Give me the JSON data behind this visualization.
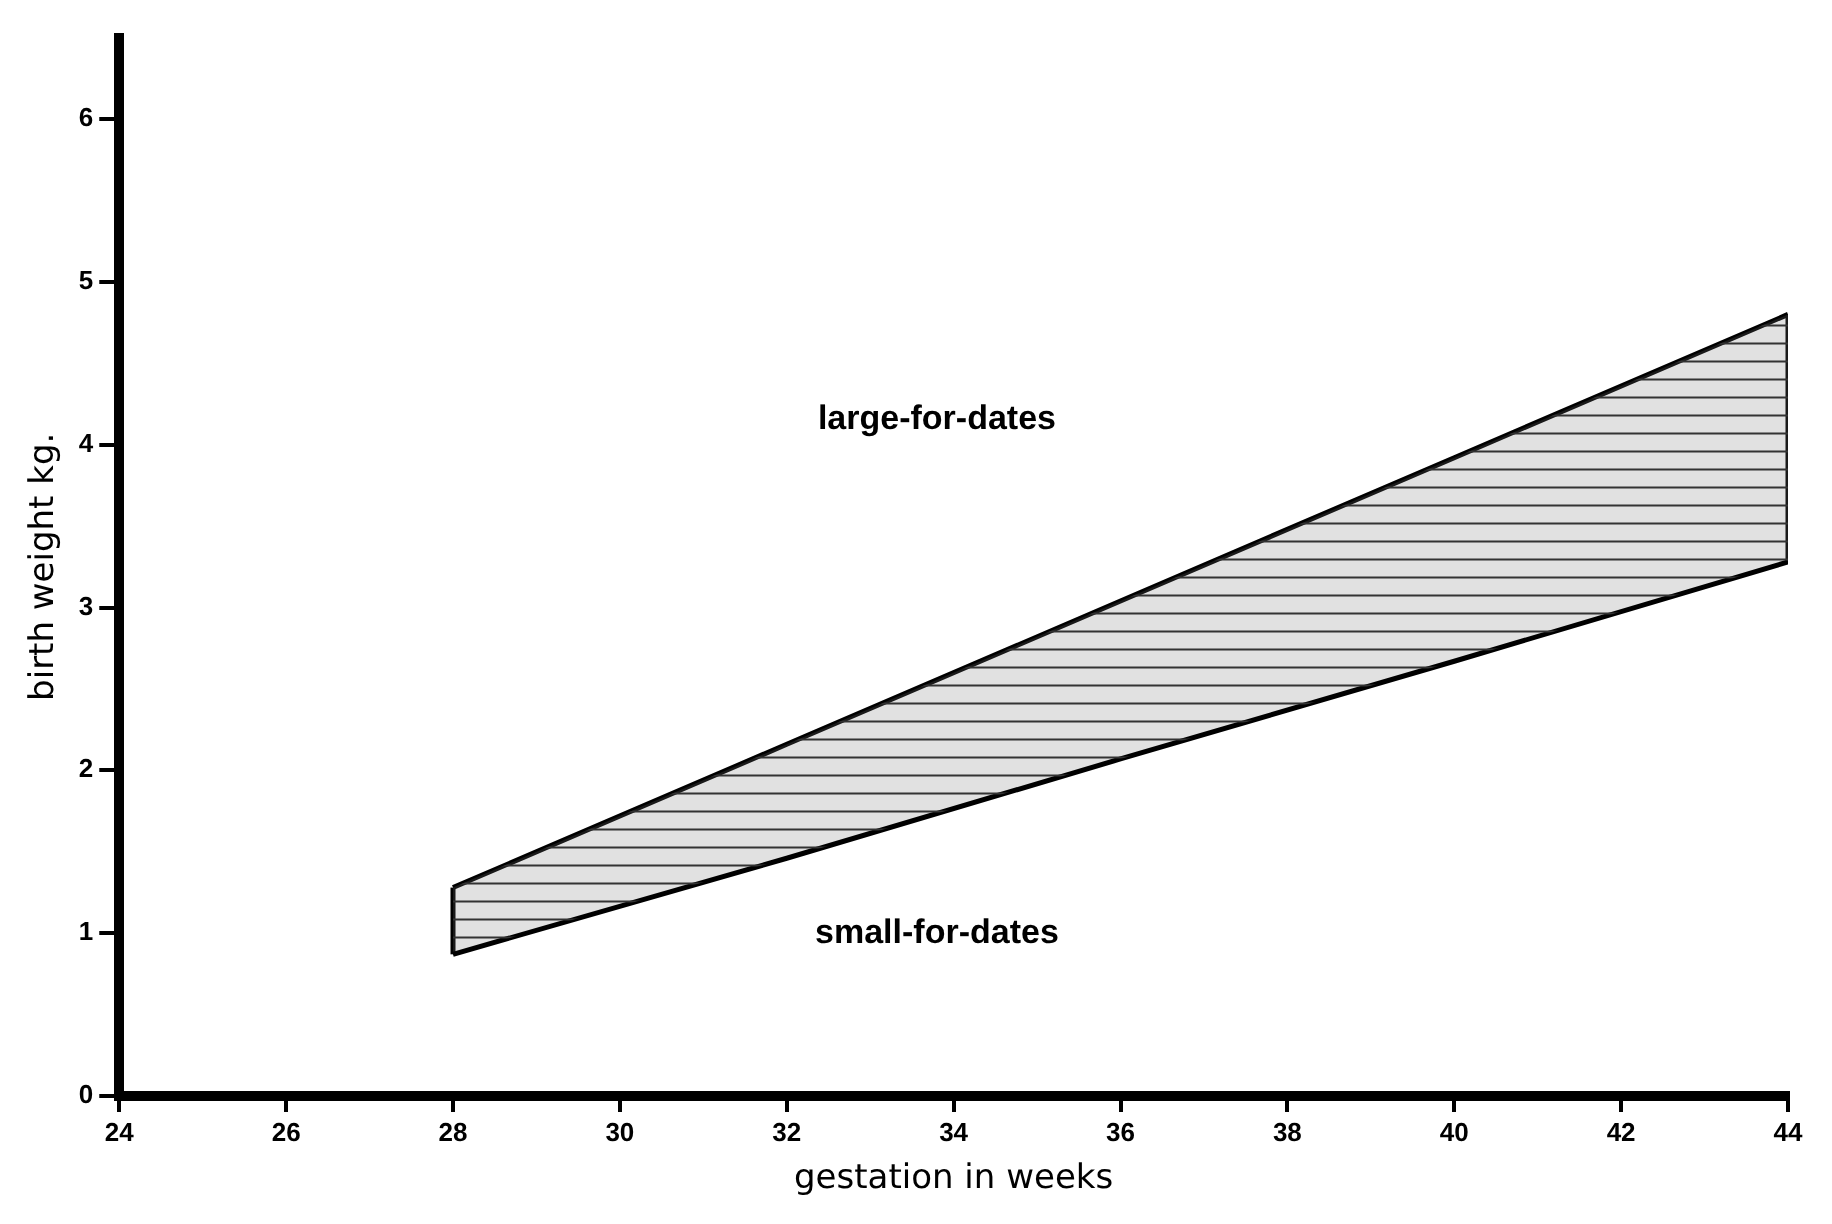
{
  "chart_data": {
    "type": "line",
    "xlabel": "gestation in weeks",
    "ylabel": "birth weight kg.",
    "xlim": [
      24,
      44
    ],
    "xticks": [
      24,
      26,
      28,
      30,
      32,
      34,
      36,
      38,
      40,
      42,
      44
    ],
    "ylim": [
      0,
      6.5
    ],
    "yticks": [
      0,
      1,
      2,
      3,
      4,
      5,
      6
    ],
    "grid": false,
    "legend": false,
    "marker": "none",
    "line_style": "solid",
    "series": [
      {
        "color": "#000000",
        "x": [
          28,
          32,
          36,
          40,
          44
        ],
        "values": [
          0.87,
          1.46,
          2.07,
          2.67,
          3.28
        ]
      },
      {
        "color": "#000000",
        "x": [
          28,
          32,
          36,
          40,
          44
        ],
        "values": [
          1.28,
          2.16,
          3.04,
          3.92,
          4.8
        ],
        "lower": [
          0.87,
          1.46,
          2.07,
          2.67,
          3.28
        ],
        "upper": [
          1.28,
          2.16,
          3.04,
          3.92,
          4.8
        ]
      },
      {
        "color": "#000000",
        "x": [
          28,
          28
        ],
        "values": [
          0.87,
          1.28
        ]
      },
      {
        "color": "#000000",
        "x": [
          44,
          44
        ],
        "values": [
          3.28,
          4.8
        ]
      }
    ],
    "annotations": [
      "large-for-dates",
      "small-for-dates"
    ]
  }
}
